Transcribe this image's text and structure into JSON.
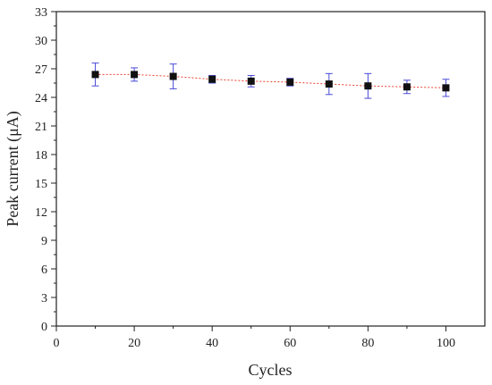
{
  "chart_data": {
    "type": "scatter",
    "title": "",
    "xlabel": "Cycles",
    "ylabel": "Peak current (μA)",
    "xlim": [
      0,
      110
    ],
    "ylim": [
      0,
      33
    ],
    "x_ticks": [
      0,
      20,
      40,
      60,
      80,
      100
    ],
    "y_ticks": [
      0,
      3,
      6,
      9,
      12,
      15,
      18,
      21,
      24,
      27,
      30,
      33
    ],
    "grid": false,
    "legend": "none",
    "series": [
      {
        "x": [
          10,
          20,
          30,
          40,
          50,
          60,
          70,
          80,
          90,
          100
        ],
        "y": [
          26.4,
          26.4,
          26.2,
          25.9,
          25.7,
          25.6,
          25.4,
          25.2,
          25.1,
          25.0
        ],
        "error": [
          1.2,
          0.7,
          1.3,
          0.4,
          0.6,
          0.4,
          1.1,
          1.3,
          0.7,
          0.9
        ],
        "marker": "square",
        "marker_color": "#111111",
        "errorbar_color": "#4a4ad8",
        "trend_line": {
          "style": "dotted",
          "color": "#e8412e"
        }
      }
    ]
  }
}
